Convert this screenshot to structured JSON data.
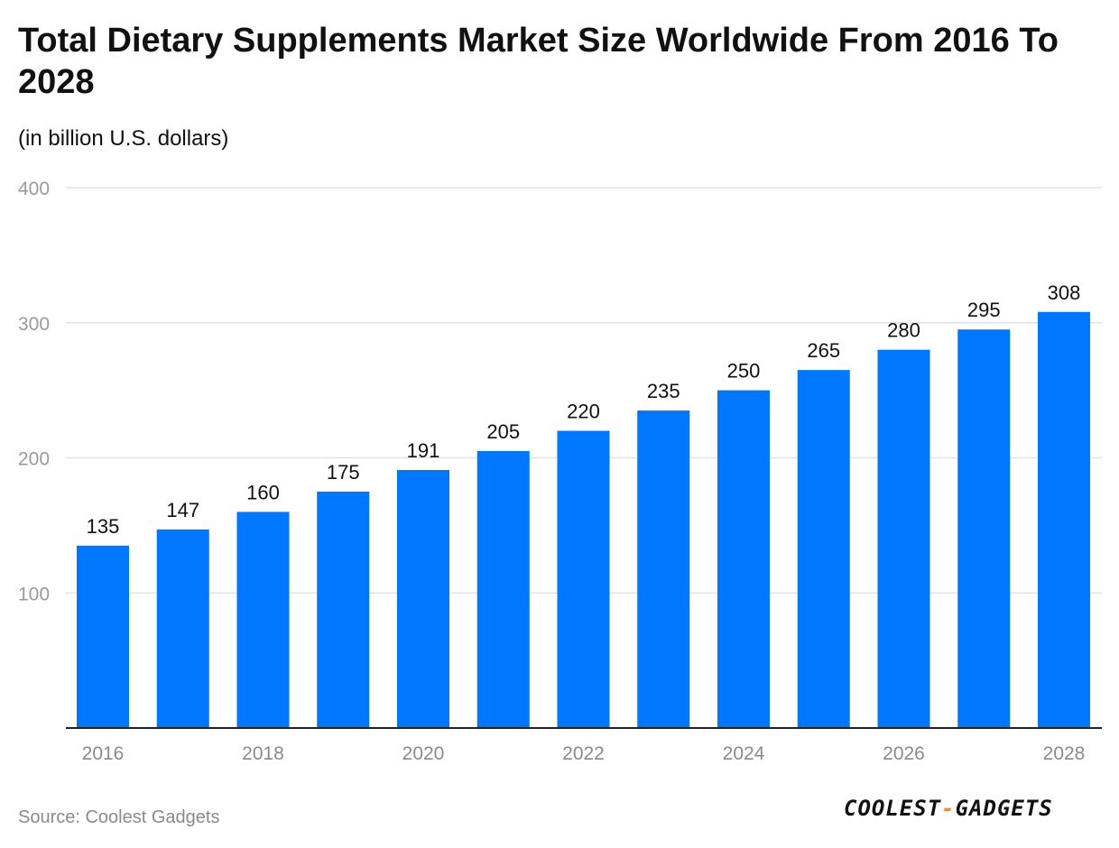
{
  "chart_data": {
    "type": "bar",
    "title": "Total Dietary Supplements Market Size Worldwide From 2016 To 2028",
    "subtitle": "(in billion U.S. dollars)",
    "categories": [
      "2016",
      "2017",
      "2018",
      "2019",
      "2020",
      "2021",
      "2022",
      "2023",
      "2024",
      "2025",
      "2026",
      "2027",
      "2028"
    ],
    "values": [
      135,
      147,
      160,
      175,
      191,
      205,
      220,
      235,
      250,
      265,
      280,
      295,
      308
    ],
    "x_tick_labels": [
      "2016",
      "",
      "2018",
      "",
      "2020",
      "",
      "2022",
      "",
      "2024",
      "",
      "2026",
      "",
      "2028"
    ],
    "y_ticks": [
      100,
      200,
      300,
      400
    ],
    "ylim": [
      0,
      400
    ],
    "xlabel": "",
    "ylabel": "",
    "grid": true,
    "bar_color": "#0077ff"
  },
  "footer": {
    "source": "Source: Coolest Gadgets",
    "logo_left": "COOLEST",
    "logo_dash": "-",
    "logo_right": "GADGETS"
  }
}
